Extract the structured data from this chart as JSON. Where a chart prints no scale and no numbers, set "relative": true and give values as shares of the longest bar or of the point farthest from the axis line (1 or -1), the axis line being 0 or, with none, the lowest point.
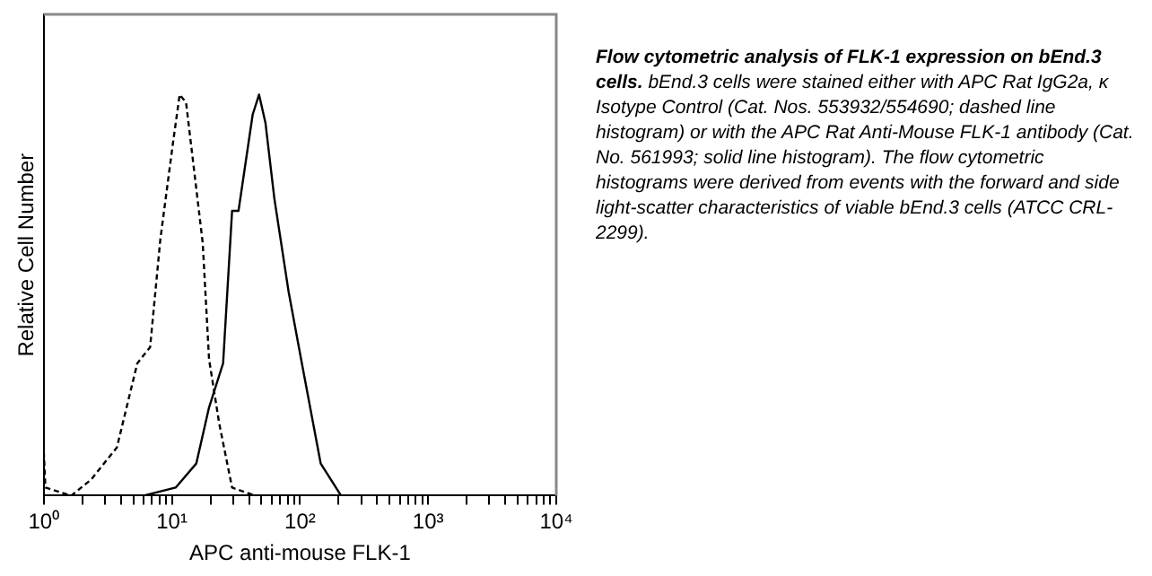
{
  "chart_data": {
    "type": "line",
    "title": "Flow cytometric analysis of FLK-1 expression on bEnd.3 cells.",
    "xlabel": "APC anti-mouse FLK-1",
    "ylabel": "Relative Cell Number",
    "relative": true,
    "log": "x",
    "legend": false,
    "grid": false,
    "marker": "none",
    "xlim": [
      1,
      10000
    ],
    "xticks": [
      {
        "value": 1,
        "label": "10⁰"
      },
      {
        "value": 2,
        "label": null
      },
      {
        "value": 3,
        "label": null
      },
      {
        "value": 4,
        "label": null
      },
      {
        "value": 5,
        "label": null
      },
      {
        "value": 6,
        "label": null
      },
      {
        "value": 7,
        "label": null
      },
      {
        "value": 8,
        "label": null
      },
      {
        "value": 9,
        "label": null
      },
      {
        "value": 10,
        "label": "10¹"
      },
      {
        "value": 20,
        "label": null
      },
      {
        "value": 30,
        "label": null
      },
      {
        "value": 40,
        "label": null
      },
      {
        "value": 50,
        "label": null
      },
      {
        "value": 60,
        "label": null
      },
      {
        "value": 70,
        "label": null
      },
      {
        "value": 80,
        "label": null
      },
      {
        "value": 90,
        "label": null
      },
      {
        "value": 100,
        "label": "10²"
      },
      {
        "value": 200,
        "label": null
      },
      {
        "value": 300,
        "label": null
      },
      {
        "value": 400,
        "label": null
      },
      {
        "value": 500,
        "label": null
      },
      {
        "value": 600,
        "label": null
      },
      {
        "value": 700,
        "label": null
      },
      {
        "value": 800,
        "label": null
      },
      {
        "value": 900,
        "label": null
      },
      {
        "value": 1000,
        "label": "10³"
      },
      {
        "value": 2000,
        "label": null
      },
      {
        "value": 3000,
        "label": null
      },
      {
        "value": 4000,
        "label": null
      },
      {
        "value": 5000,
        "label": null
      },
      {
        "value": 6000,
        "label": null
      },
      {
        "value": 7000,
        "label": null
      },
      {
        "value": 8000,
        "label": null
      },
      {
        "value": 9000,
        "label": null
      },
      {
        "value": 10000,
        "label": "10⁴"
      }
    ],
    "series": [
      {
        "color": "#000000",
        "line_style": "dashed",
        "x": [
          1,
          1.03,
          1.64,
          2.34,
          3.72,
          5.37,
          6.76,
          8.13,
          10.2,
          11.5,
          12.9,
          17.4,
          19.5,
          23.4,
          29.5,
          44.7,
          100,
          1000,
          10000
        ],
        "values": [
          0.11,
          0.02,
          0.0,
          0.04,
          0.12,
          0.33,
          0.37,
          0.64,
          0.88,
          1.0,
          0.98,
          0.63,
          0.34,
          0.18,
          0.02,
          0.0,
          0.0,
          0.0,
          0.0
        ]
      },
      {
        "color": "#000000",
        "line_style": "solid",
        "x": [
          1,
          6.03,
          10.7,
          15.5,
          19.5,
          25.1,
          29.5,
          33.1,
          42.7,
          47.9,
          53.7,
          63.1,
          81.3,
          102,
          145,
          209,
          500,
          10000
        ],
        "values": [
          0.0,
          0.0,
          0.02,
          0.08,
          0.22,
          0.33,
          0.71,
          0.71,
          0.95,
          1.0,
          0.93,
          0.74,
          0.51,
          0.34,
          0.08,
          0.0,
          0.0,
          0.0
        ]
      }
    ],
    "annotations": [
      "bEnd.3 cells were stained either with APC Rat IgG2a, κ Isotype Control (Cat. Nos. 553932/554690; dashed line histogram) or with the APC Rat Anti-Mouse FLK-1 antibody (Cat. No. 561993; solid line histogram). The flow cytometric histograms were derived from events with the forward and side light-scatter characteristics of viable bEnd.3 cells (ATCC CRL-2299)."
    ]
  }
}
